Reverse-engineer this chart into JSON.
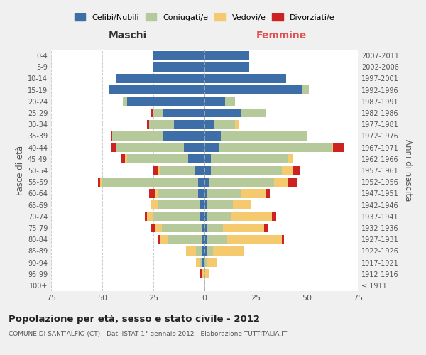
{
  "age_groups": [
    "100+",
    "95-99",
    "90-94",
    "85-89",
    "80-84",
    "75-79",
    "70-74",
    "65-69",
    "60-64",
    "55-59",
    "50-54",
    "45-49",
    "40-44",
    "35-39",
    "30-34",
    "25-29",
    "20-24",
    "15-19",
    "10-14",
    "5-9",
    "0-4"
  ],
  "birth_years": [
    "≤ 1911",
    "1912-1916",
    "1917-1921",
    "1922-1926",
    "1927-1931",
    "1932-1936",
    "1937-1941",
    "1942-1946",
    "1947-1951",
    "1952-1956",
    "1957-1961",
    "1962-1966",
    "1967-1971",
    "1972-1976",
    "1977-1981",
    "1982-1986",
    "1987-1991",
    "1992-1996",
    "1997-2001",
    "2002-2006",
    "2007-2011"
  ],
  "males_celibe": [
    0,
    0,
    1,
    1,
    1,
    1,
    2,
    2,
    3,
    3,
    5,
    8,
    10,
    20,
    15,
    20,
    38,
    47,
    43,
    25,
    25
  ],
  "males_coniugato": [
    0,
    0,
    1,
    3,
    17,
    20,
    23,
    21,
    20,
    47,
    17,
    30,
    33,
    25,
    12,
    5,
    2,
    0,
    0,
    0,
    0
  ],
  "males_vedovo": [
    0,
    1,
    2,
    5,
    4,
    3,
    3,
    3,
    1,
    1,
    1,
    1,
    0,
    0,
    0,
    0,
    0,
    0,
    0,
    0,
    0
  ],
  "males_divorziato": [
    0,
    1,
    0,
    0,
    1,
    2,
    1,
    0,
    3,
    1,
    2,
    2,
    3,
    1,
    1,
    1,
    0,
    0,
    0,
    0,
    0
  ],
  "females_nubile": [
    0,
    0,
    0,
    1,
    1,
    1,
    1,
    1,
    1,
    2,
    3,
    3,
    7,
    8,
    5,
    18,
    10,
    48,
    40,
    22,
    22
  ],
  "females_coniugata": [
    0,
    0,
    1,
    3,
    10,
    8,
    12,
    13,
    17,
    32,
    35,
    38,
    55,
    42,
    10,
    12,
    5,
    3,
    0,
    0,
    0
  ],
  "females_vedova": [
    0,
    2,
    5,
    15,
    27,
    20,
    20,
    9,
    12,
    7,
    5,
    2,
    1,
    0,
    2,
    0,
    0,
    0,
    0,
    0,
    0
  ],
  "females_divorziata": [
    0,
    0,
    0,
    0,
    1,
    2,
    2,
    0,
    2,
    4,
    4,
    0,
    5,
    0,
    0,
    0,
    0,
    0,
    0,
    0,
    0
  ],
  "color_celibe": "#3d6ea8",
  "color_coniugato": "#b5c99a",
  "color_vedovo": "#f5c96e",
  "color_divorziato": "#cc2222",
  "xlim": 75,
  "xticks": [
    -75,
    -50,
    -25,
    0,
    25,
    50,
    75
  ],
  "title": "Popolazione per età, sesso e stato civile - 2012",
  "subtitle": "COMUNE DI SANT'ALFIO (CT) - Dati ISTAT 1° gennaio 2012 - Elaborazione TUTTITALIA.IT",
  "ylabel_left": "Fasce di età",
  "ylabel_right": "Anni di nascita",
  "label_maschi": "Maschi",
  "label_femmine": "Femmine",
  "legend_labels": [
    "Celibi/Nubili",
    "Coniugati/e",
    "Vedovi/e",
    "Divorziati/e"
  ],
  "bg_color": "#f0f0f0",
  "plot_bg": "#ffffff"
}
